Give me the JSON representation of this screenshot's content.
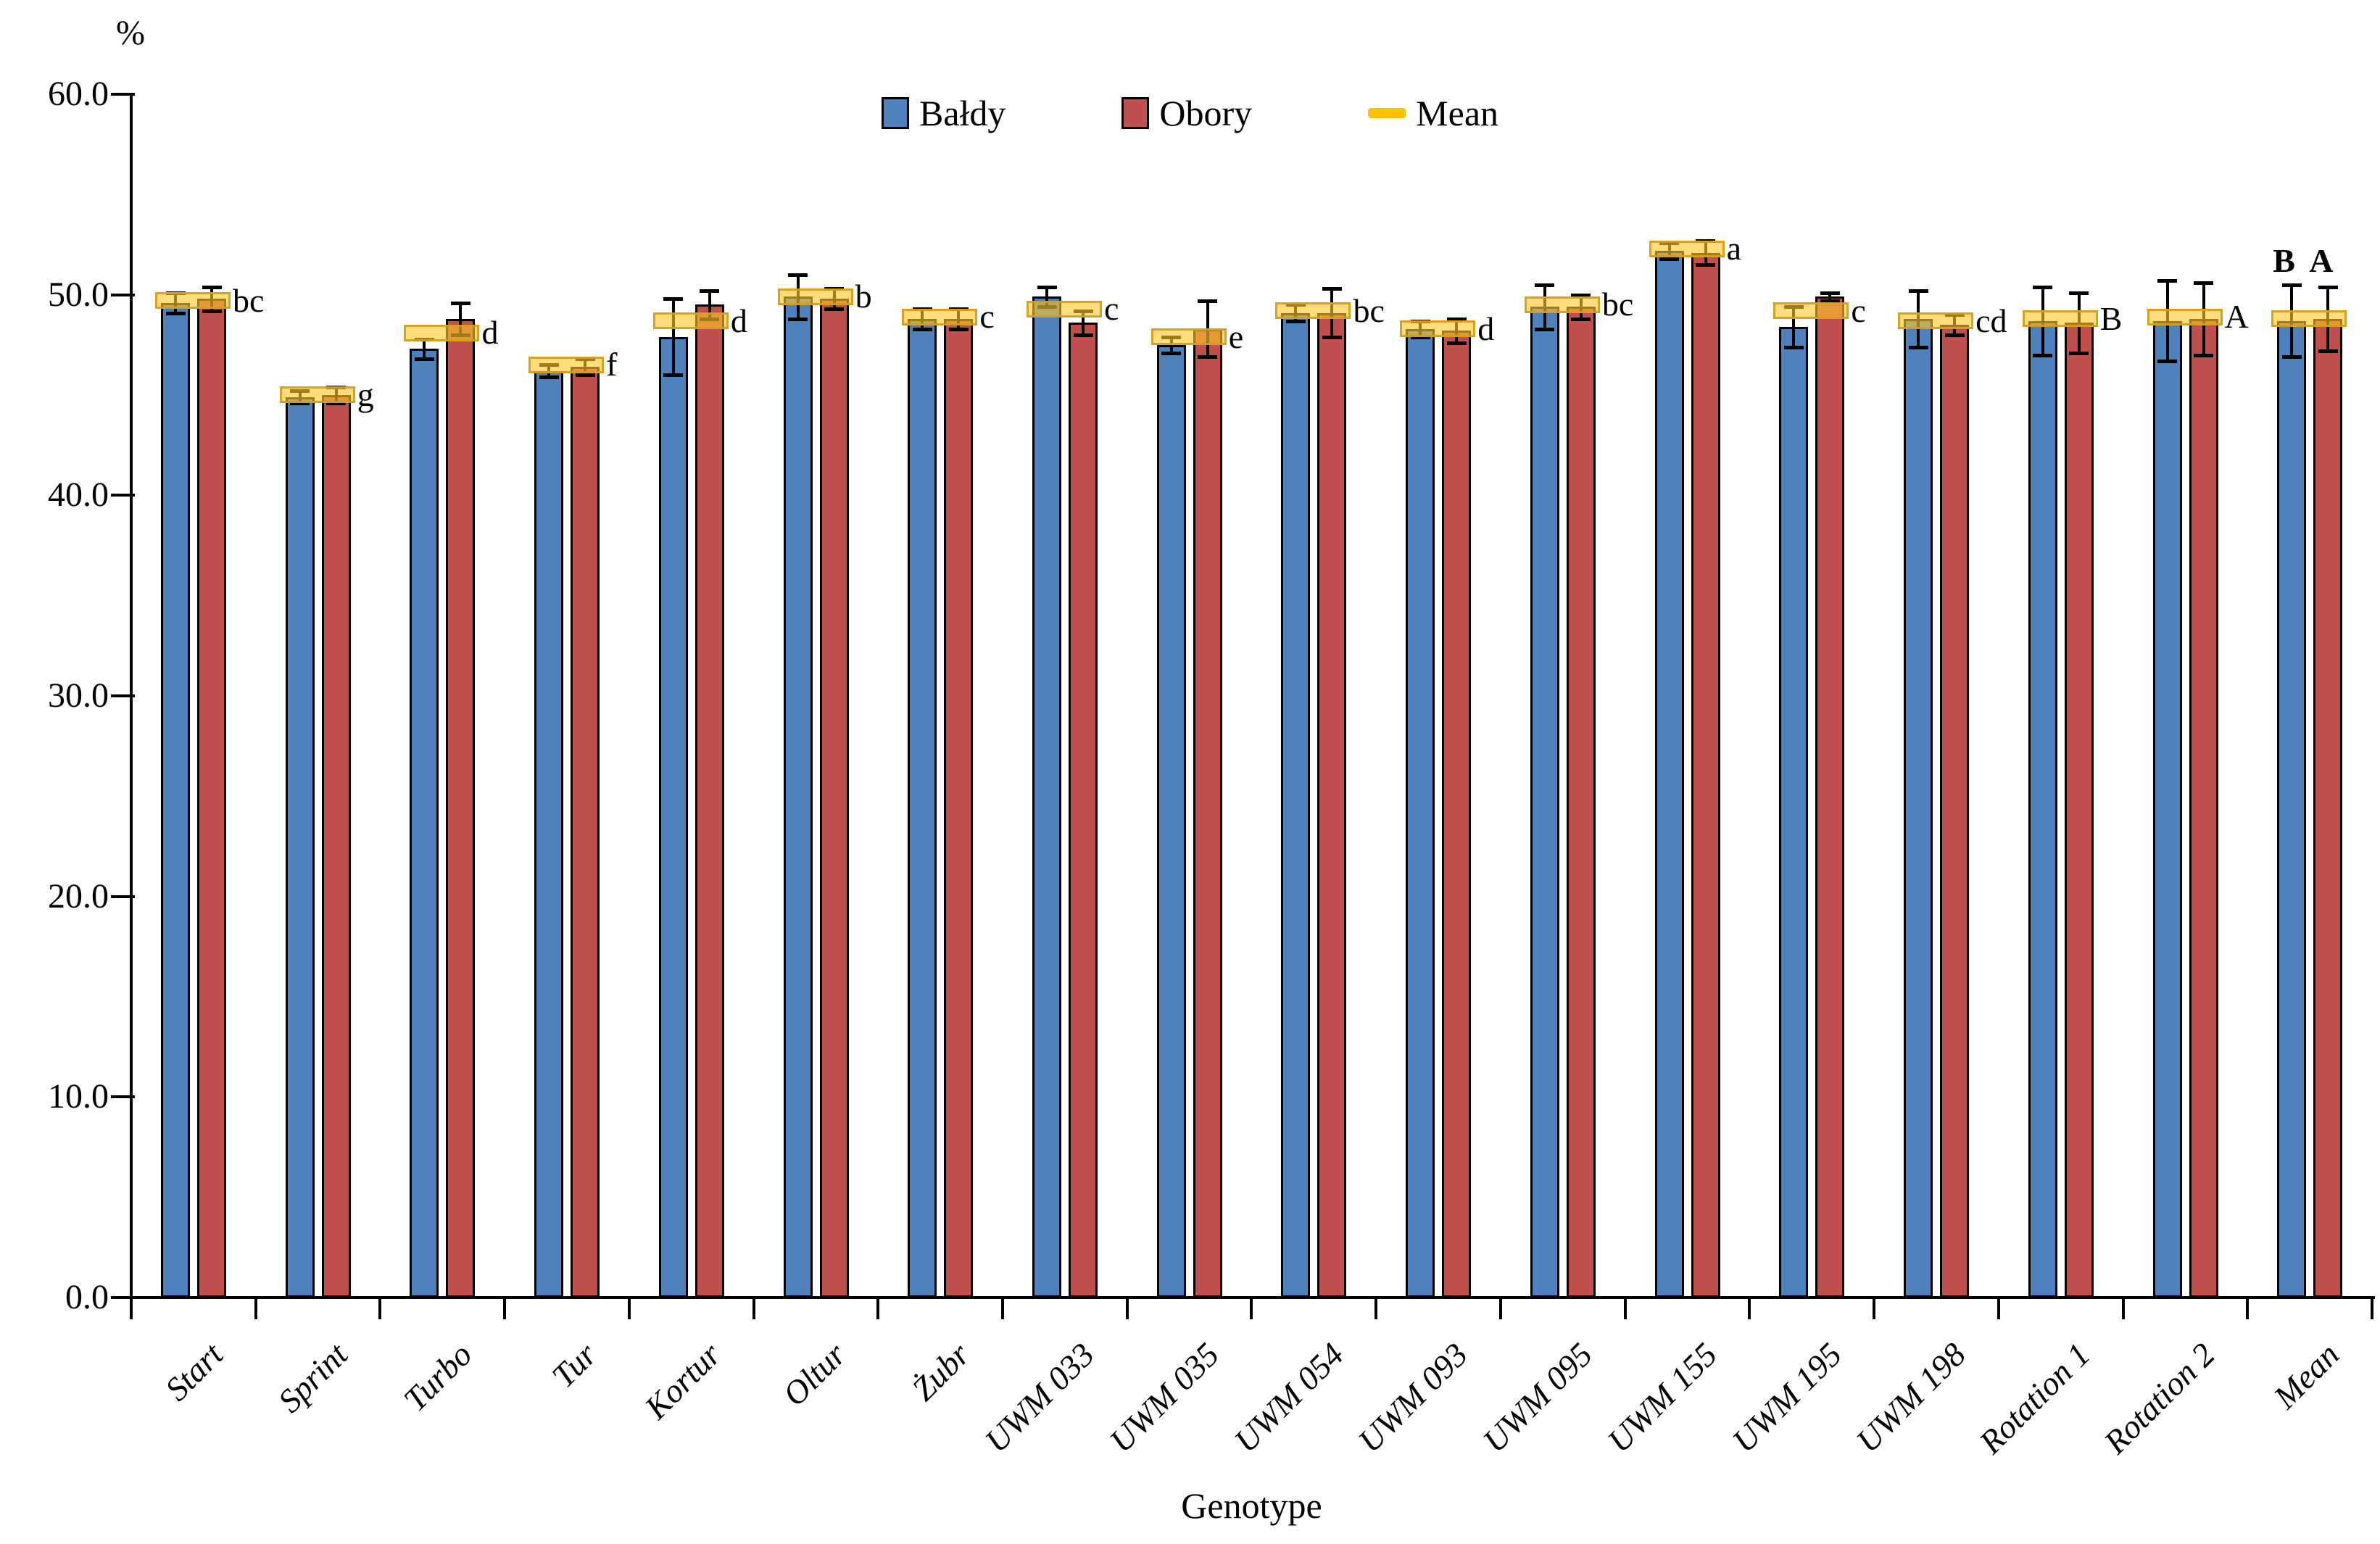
{
  "chart_data": {
    "type": "bar",
    "title": "",
    "ylabel": "%",
    "xlabel": "Genotype",
    "ylim": [
      0,
      60
    ],
    "ytick_step": 10,
    "ytick_labels": [
      "0.0",
      "10.0",
      "20.0",
      "30.0",
      "40.0",
      "50.0",
      "60.0"
    ],
    "grid": false,
    "legend_position": "top-center",
    "categories": [
      "Start",
      "Sprint",
      "Turbo",
      "Tur",
      "Kortur",
      "Oltur",
      "Żubr",
      "UWM 033",
      "UWM 035",
      "UWM 054",
      "UWM 093",
      "UWM 095",
      "UWM 155",
      "UWM 195",
      "UWM 198",
      "Rotation 1",
      "Rotation 2",
      "Mean"
    ],
    "series": [
      {
        "name": "Bałdy",
        "color": "#4F81BD",
        "values": [
          49.6,
          44.9,
          47.3,
          46.2,
          47.9,
          49.9,
          48.8,
          49.9,
          47.5,
          49.1,
          48.3,
          49.4,
          52.2,
          48.4,
          48.8,
          48.7,
          48.7,
          48.7
        ],
        "errors": [
          0.5,
          0.3,
          0.5,
          0.3,
          1.9,
          1.1,
          0.5,
          0.5,
          0.4,
          0.4,
          0.4,
          1.1,
          0.4,
          1.0,
          1.4,
          1.7,
          2.0,
          1.8
        ]
      },
      {
        "name": "Obory",
        "color": "#C0504D",
        "values": [
          49.8,
          45.0,
          48.8,
          46.4,
          49.5,
          49.8,
          48.8,
          48.6,
          48.3,
          49.1,
          48.2,
          49.4,
          52.1,
          49.9,
          48.5,
          48.6,
          48.8,
          48.8
        ],
        "errors": [
          0.6,
          0.4,
          0.8,
          0.4,
          0.7,
          0.5,
          0.5,
          0.6,
          1.4,
          1.2,
          0.6,
          0.6,
          0.6,
          0.2,
          0.5,
          1.5,
          1.8,
          1.6
        ]
      }
    ],
    "mean_series": {
      "name": "Mean",
      "color": "#FFC000",
      "values": [
        49.7,
        45.0,
        48.1,
        46.5,
        48.7,
        49.9,
        48.9,
        49.3,
        47.9,
        49.2,
        48.3,
        49.5,
        52.3,
        49.2,
        48.7,
        48.8,
        48.9,
        48.8
      ]
    },
    "significance_letters": [
      "bc",
      "g",
      "d",
      "f",
      "d",
      "b",
      "c",
      "c",
      "e",
      "bc",
      "d",
      "bc",
      "a",
      "c",
      "cd",
      "B",
      "A",
      ""
    ],
    "mean_group_above_letters": [
      "B",
      "A"
    ],
    "colors": {
      "bar_border": "#000000",
      "error_bar": "#000000",
      "mean_band_fill": "#FFC62C",
      "mean_band_border": "#D49E1E"
    }
  }
}
